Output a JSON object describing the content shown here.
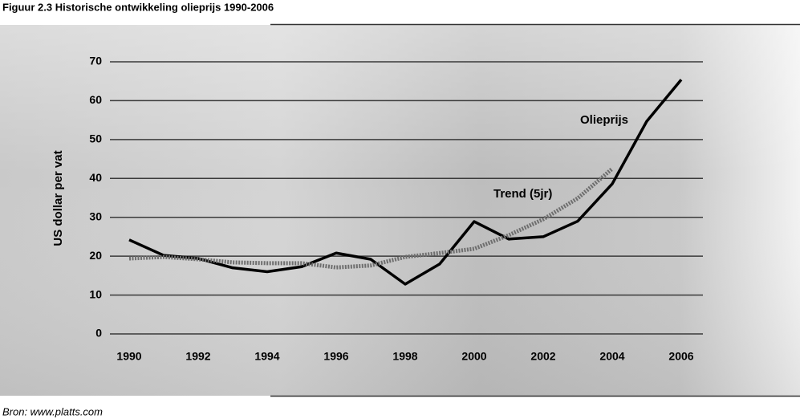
{
  "chart_data": {
    "type": "line",
    "title": "Figuur 2.3 Historische ontwikkeling olieprijs 1990-2006",
    "source": "Bron: www.platts.com",
    "ylabel": "US dollar per vat",
    "x": [
      1990,
      1991,
      1992,
      1993,
      1994,
      1995,
      1996,
      1997,
      1998,
      1999,
      2000,
      2001,
      2002,
      2003,
      2004,
      2005,
      2006
    ],
    "series": [
      {
        "name": "Olieprijs",
        "color": "#000000",
        "style": "solid",
        "values": [
          24.2,
          20.2,
          19.4,
          17,
          16,
          17.3,
          20.8,
          19.2,
          12.8,
          18,
          28.9,
          24.4,
          25,
          29,
          38.6,
          54.7,
          65.4
        ]
      },
      {
        "name": "Trend (5jr)",
        "color": "#6e6e6e",
        "style": "dotted",
        "values": [
          19.4,
          19.8,
          19.2,
          18.4,
          18.2,
          18.2,
          17.1,
          17.6,
          19.8,
          20.8,
          21.9,
          25.4,
          29.5,
          34.9,
          42.5,
          null,
          null
        ]
      }
    ],
    "xlim": [
      1990,
      2006
    ],
    "xticks": [
      1990,
      1992,
      1994,
      1996,
      1998,
      2000,
      2002,
      2004,
      2006
    ],
    "ylim": [
      0,
      70
    ],
    "yticks": [
      0,
      10,
      20,
      30,
      40,
      50,
      60,
      70
    ],
    "grid": true
  }
}
